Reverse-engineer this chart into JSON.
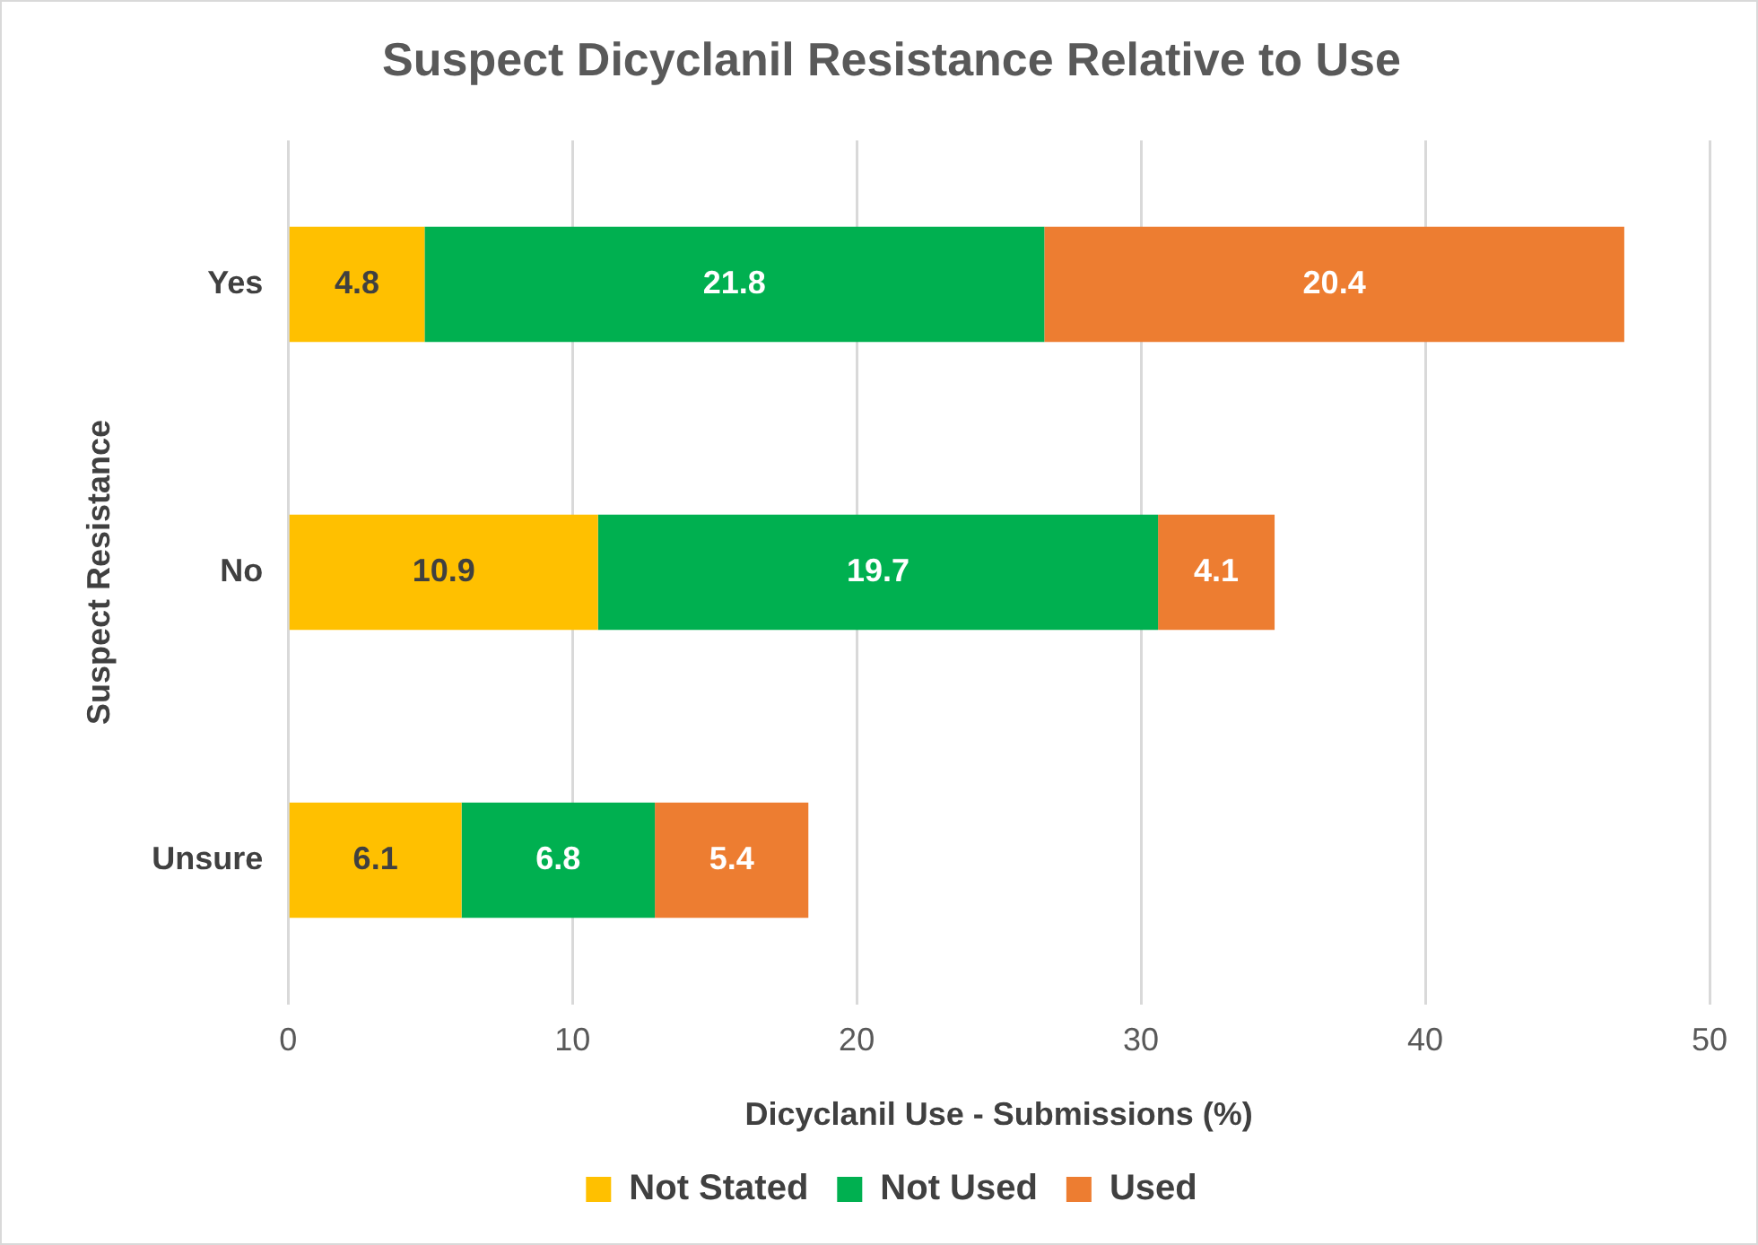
{
  "chart_data": {
    "type": "bar",
    "orientation": "horizontal",
    "stacked": true,
    "title": "Suspect Dicyclanil Resistance Relative to Use",
    "xlabel": "Dicyclanil Use - Submissions (%)",
    "ylabel": "Suspect Resistance",
    "categories": [
      "Yes",
      "No",
      "Unsure"
    ],
    "series": [
      {
        "name": "Not Stated",
        "color": "#ffc000",
        "values": [
          4.8,
          10.9,
          6.1
        ]
      },
      {
        "name": "Not Used",
        "color": "#00b050",
        "values": [
          21.8,
          19.7,
          6.8
        ]
      },
      {
        "name": "Used",
        "color": "#ed7d31",
        "values": [
          20.4,
          4.1,
          5.4
        ]
      }
    ],
    "xlim": [
      0,
      50
    ],
    "xticks": [
      0,
      10,
      20,
      30,
      40,
      50
    ],
    "grid": "x",
    "legend": "bottom",
    "data_labels": true
  }
}
